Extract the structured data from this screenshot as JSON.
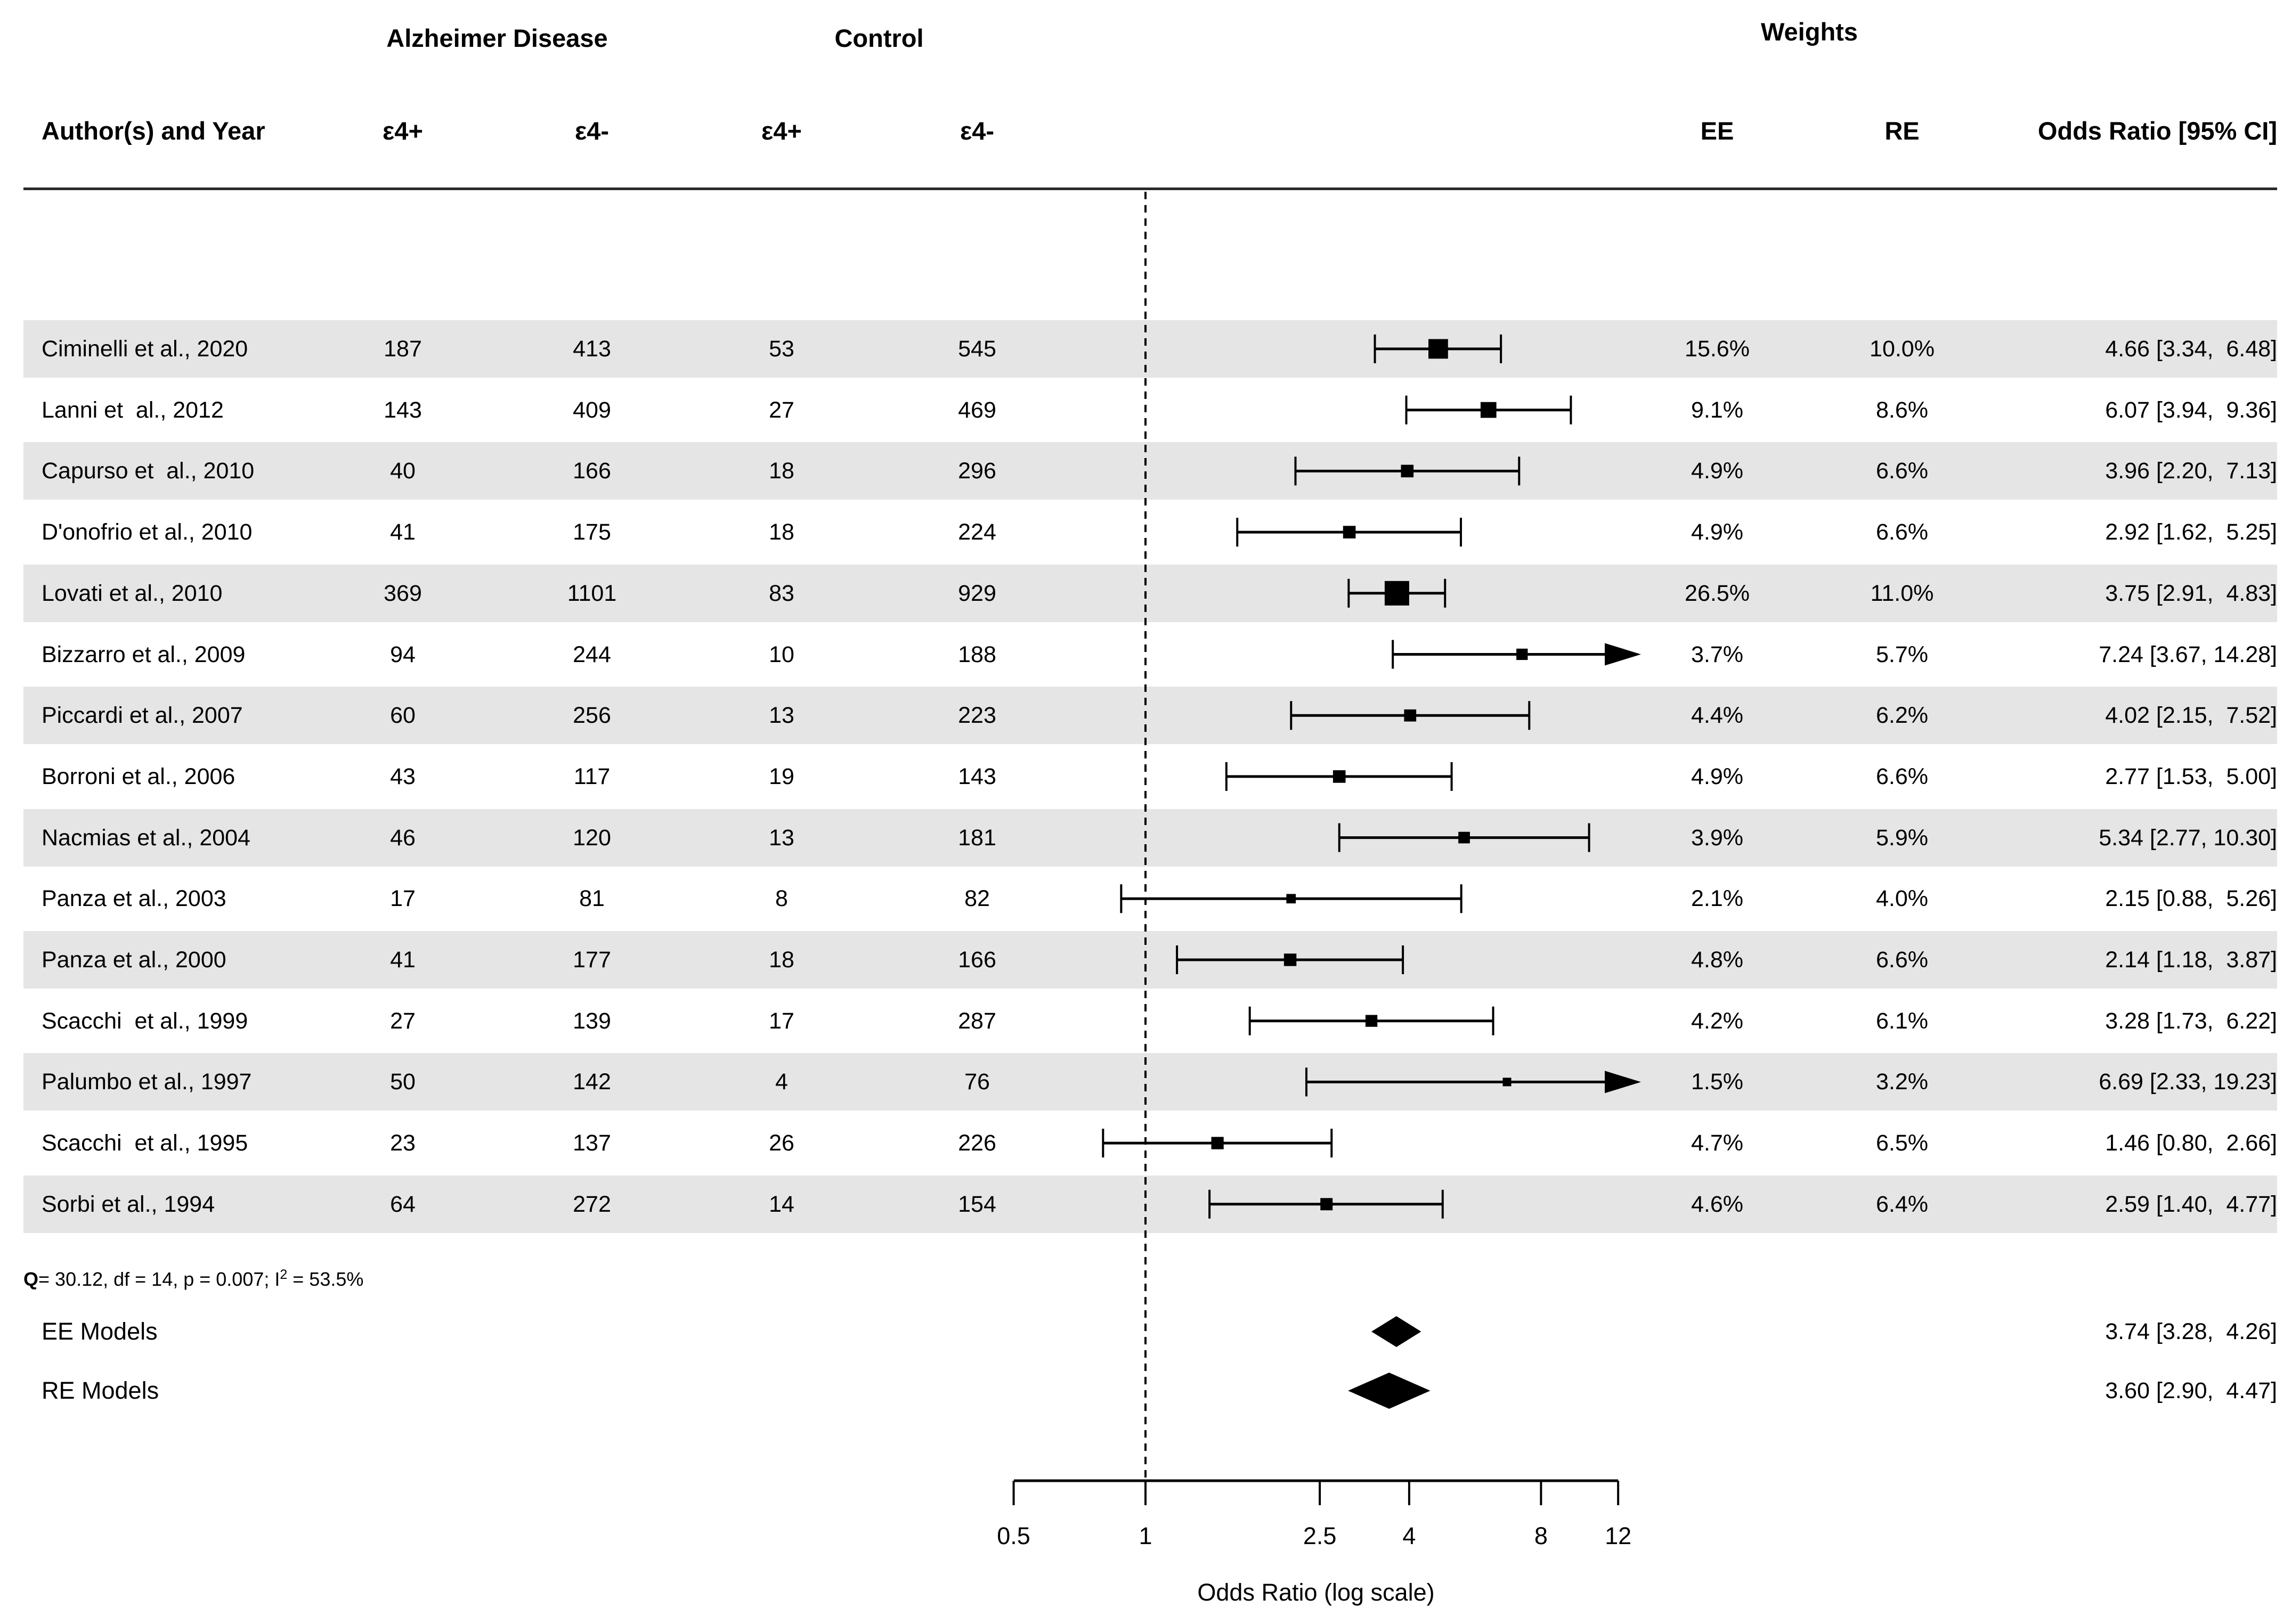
{
  "figure": {
    "header": {
      "group_ad": "Alzheimer Disease",
      "group_control": "Control",
      "group_weights": "Weights",
      "col_author": "Author(s) and Year",
      "col_ad_e4pos": "ε4+",
      "col_ad_e4neg": "ε4-",
      "col_ctrl_e4pos": "ε4+",
      "col_ctrl_e4neg": "ε4-",
      "col_ee": "EE",
      "col_re": "RE",
      "col_or": "Odds Ratio [95% CI]"
    },
    "heterogeneity": {
      "q_label": "Q",
      "text_mid": "= 30.12, df = 14, p = 0.007; I",
      "sup": "2",
      "text_end": " = 53.5%"
    },
    "colors": {
      "band": "#e5e5e5",
      "ink": "#000000",
      "rule": "#2a2a2a"
    }
  },
  "chart_data": {
    "type": "scatter",
    "subtype": "forest-plot",
    "title": "",
    "xlabel": "Odds Ratio (log scale)",
    "ylabel": "",
    "x_scale": "log",
    "x_range": [
      0.5,
      12
    ],
    "x_ticks": [
      0.5,
      1,
      2.5,
      4,
      8,
      12
    ],
    "x_tick_labels": [
      "0.5",
      "1",
      "2.5",
      "4",
      "8",
      "12"
    ],
    "reference_line_x": 1,
    "grid": false,
    "legend": false,
    "studies": [
      {
        "author": "Ciminelli et al., 2020",
        "ad_e4pos": 187,
        "ad_e4neg": 413,
        "ctrl_e4pos": 53,
        "ctrl_e4neg": 545,
        "ee_pct": 15.6,
        "re_pct": 10.0,
        "ee_label": "15.6%",
        "re_label": "10.0%",
        "or": 4.66,
        "ci_low": 3.34,
        "ci_high": 6.48,
        "or_label": "4.66 [3.34,  6.48]",
        "arrow": false
      },
      {
        "author": "Lanni et  al., 2012",
        "ad_e4pos": 143,
        "ad_e4neg": 409,
        "ctrl_e4pos": 27,
        "ctrl_e4neg": 469,
        "ee_pct": 9.1,
        "re_pct": 8.6,
        "ee_label": "9.1%",
        "re_label": "8.6%",
        "or": 6.07,
        "ci_low": 3.94,
        "ci_high": 9.36,
        "or_label": "6.07 [3.94,  9.36]",
        "arrow": false
      },
      {
        "author": "Capurso et  al., 2010",
        "ad_e4pos": 40,
        "ad_e4neg": 166,
        "ctrl_e4pos": 18,
        "ctrl_e4neg": 296,
        "ee_pct": 4.9,
        "re_pct": 6.6,
        "ee_label": "4.9%",
        "re_label": "6.6%",
        "or": 3.96,
        "ci_low": 2.2,
        "ci_high": 7.13,
        "or_label": "3.96 [2.20,  7.13]",
        "arrow": false
      },
      {
        "author": "D'onofrio et al., 2010",
        "ad_e4pos": 41,
        "ad_e4neg": 175,
        "ctrl_e4pos": 18,
        "ctrl_e4neg": 224,
        "ee_pct": 4.9,
        "re_pct": 6.6,
        "ee_label": "4.9%",
        "re_label": "6.6%",
        "or": 2.92,
        "ci_low": 1.62,
        "ci_high": 5.25,
        "or_label": "2.92 [1.62,  5.25]",
        "arrow": false
      },
      {
        "author": "Lovati et al., 2010",
        "ad_e4pos": 369,
        "ad_e4neg": 1101,
        "ctrl_e4pos": 83,
        "ctrl_e4neg": 929,
        "ee_pct": 26.5,
        "re_pct": 11.0,
        "ee_label": "26.5%",
        "re_label": "11.0%",
        "or": 3.75,
        "ci_low": 2.91,
        "ci_high": 4.83,
        "or_label": "3.75 [2.91,  4.83]",
        "arrow": false
      },
      {
        "author": "Bizzarro et al., 2009",
        "ad_e4pos": 94,
        "ad_e4neg": 244,
        "ctrl_e4pos": 10,
        "ctrl_e4neg": 188,
        "ee_pct": 3.7,
        "re_pct": 5.7,
        "ee_label": "3.7%",
        "re_label": "5.7%",
        "or": 7.24,
        "ci_low": 3.67,
        "ci_high": 14.28,
        "or_label": "7.24 [3.67, 14.28]",
        "arrow": true
      },
      {
        "author": "Piccardi et al., 2007",
        "ad_e4pos": 60,
        "ad_e4neg": 256,
        "ctrl_e4pos": 13,
        "ctrl_e4neg": 223,
        "ee_pct": 4.4,
        "re_pct": 6.2,
        "ee_label": "4.4%",
        "re_label": "6.2%",
        "or": 4.02,
        "ci_low": 2.15,
        "ci_high": 7.52,
        "or_label": "4.02 [2.15,  7.52]",
        "arrow": false
      },
      {
        "author": "Borroni et al., 2006",
        "ad_e4pos": 43,
        "ad_e4neg": 117,
        "ctrl_e4pos": 19,
        "ctrl_e4neg": 143,
        "ee_pct": 4.9,
        "re_pct": 6.6,
        "ee_label": "4.9%",
        "re_label": "6.6%",
        "or": 2.77,
        "ci_low": 1.53,
        "ci_high": 5.0,
        "or_label": "2.77 [1.53,  5.00]",
        "arrow": false
      },
      {
        "author": "Nacmias et al., 2004",
        "ad_e4pos": 46,
        "ad_e4neg": 120,
        "ctrl_e4pos": 13,
        "ctrl_e4neg": 181,
        "ee_pct": 3.9,
        "re_pct": 5.9,
        "ee_label": "3.9%",
        "re_label": "5.9%",
        "or": 5.34,
        "ci_low": 2.77,
        "ci_high": 10.3,
        "or_label": "5.34 [2.77, 10.30]",
        "arrow": false
      },
      {
        "author": "Panza et al., 2003",
        "ad_e4pos": 17,
        "ad_e4neg": 81,
        "ctrl_e4pos": 8,
        "ctrl_e4neg": 82,
        "ee_pct": 2.1,
        "re_pct": 4.0,
        "ee_label": "2.1%",
        "re_label": "4.0%",
        "or": 2.15,
        "ci_low": 0.88,
        "ci_high": 5.26,
        "or_label": "2.15 [0.88,  5.26]",
        "arrow": false
      },
      {
        "author": "Panza et al., 2000",
        "ad_e4pos": 41,
        "ad_e4neg": 177,
        "ctrl_e4pos": 18,
        "ctrl_e4neg": 166,
        "ee_pct": 4.8,
        "re_pct": 6.6,
        "ee_label": "4.8%",
        "re_label": "6.6%",
        "or": 2.14,
        "ci_low": 1.18,
        "ci_high": 3.87,
        "or_label": "2.14 [1.18,  3.87]",
        "arrow": false
      },
      {
        "author": "Scacchi  et al., 1999",
        "ad_e4pos": 27,
        "ad_e4neg": 139,
        "ctrl_e4pos": 17,
        "ctrl_e4neg": 287,
        "ee_pct": 4.2,
        "re_pct": 6.1,
        "ee_label": "4.2%",
        "re_label": "6.1%",
        "or": 3.28,
        "ci_low": 1.73,
        "ci_high": 6.22,
        "or_label": "3.28 [1.73,  6.22]",
        "arrow": false
      },
      {
        "author": "Palumbo et al., 1997",
        "ad_e4pos": 50,
        "ad_e4neg": 142,
        "ctrl_e4pos": 4,
        "ctrl_e4neg": 76,
        "ee_pct": 1.5,
        "re_pct": 3.2,
        "ee_label": "1.5%",
        "re_label": "3.2%",
        "or": 6.69,
        "ci_low": 2.33,
        "ci_high": 19.23,
        "or_label": "6.69 [2.33, 19.23]",
        "arrow": true
      },
      {
        "author": "Scacchi  et al., 1995",
        "ad_e4pos": 23,
        "ad_e4neg": 137,
        "ctrl_e4pos": 26,
        "ctrl_e4neg": 226,
        "ee_pct": 4.7,
        "re_pct": 6.5,
        "ee_label": "4.7%",
        "re_label": "6.5%",
        "or": 1.46,
        "ci_low": 0.8,
        "ci_high": 2.66,
        "or_label": "1.46 [0.80,  2.66]",
        "arrow": false
      },
      {
        "author": "Sorbi et al., 1994",
        "ad_e4pos": 64,
        "ad_e4neg": 272,
        "ctrl_e4pos": 14,
        "ctrl_e4neg": 154,
        "ee_pct": 4.6,
        "re_pct": 6.4,
        "ee_label": "4.6%",
        "re_label": "6.4%",
        "or": 2.59,
        "ci_low": 1.4,
        "ci_high": 4.77,
        "or_label": "2.59 [1.40,  4.77]",
        "arrow": false
      }
    ],
    "summaries": [
      {
        "label": "EE Models",
        "or": 3.74,
        "ci_low": 3.28,
        "ci_high": 4.26,
        "or_label": "3.74 [3.28,  4.26]"
      },
      {
        "label": "RE Models",
        "or": 3.6,
        "ci_low": 2.9,
        "ci_high": 4.47,
        "or_label": "3.60 [2.90,  4.47]"
      }
    ],
    "heterogeneity_text": "Q= 30.12, df = 14, p = 0.007; I2 = 53.5%"
  }
}
